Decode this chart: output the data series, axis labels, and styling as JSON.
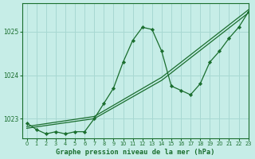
{
  "title": "Graphe pression niveau de la mer (hPa)",
  "bg_color": "#c6ede7",
  "plot_bg_color": "#c6ede7",
  "grid_color": "#a8d8d2",
  "line_color": "#1a6e2e",
  "marker_color": "#1a6e2e",
  "xlabel_color": "#1a6e2e",
  "xtick_color": "#1a6e2e",
  "ytick_color": "#1a6e2e",
  "xlim": [
    -0.5,
    23
  ],
  "ylim": [
    1022.55,
    1025.65
  ],
  "yticks": [
    1023,
    1024,
    1025
  ],
  "xticks": [
    0,
    1,
    2,
    3,
    4,
    5,
    6,
    7,
    8,
    9,
    10,
    11,
    12,
    13,
    14,
    15,
    16,
    17,
    18,
    19,
    20,
    21,
    22,
    23
  ],
  "curved_x": [
    0,
    1,
    2,
    3,
    4,
    5,
    6,
    7,
    8,
    9,
    10,
    11,
    12,
    13,
    14,
    15,
    16,
    17,
    18,
    19,
    20,
    21,
    22,
    23
  ],
  "curved_y": [
    1022.9,
    1022.75,
    1022.65,
    1022.7,
    1022.65,
    1022.7,
    1022.7,
    1023.0,
    1023.35,
    1023.7,
    1024.3,
    1024.8,
    1025.1,
    1025.05,
    1024.55,
    1023.75,
    1023.65,
    1023.55,
    1023.8,
    1024.3,
    1024.55,
    1024.85,
    1025.1,
    1025.45
  ],
  "line1_x": [
    0,
    7,
    14,
    23
  ],
  "line1_y": [
    1022.82,
    1023.05,
    1023.95,
    1025.5
  ],
  "line2_x": [
    0,
    7,
    14,
    23
  ],
  "line2_y": [
    1022.78,
    1023.0,
    1023.88,
    1025.43
  ]
}
